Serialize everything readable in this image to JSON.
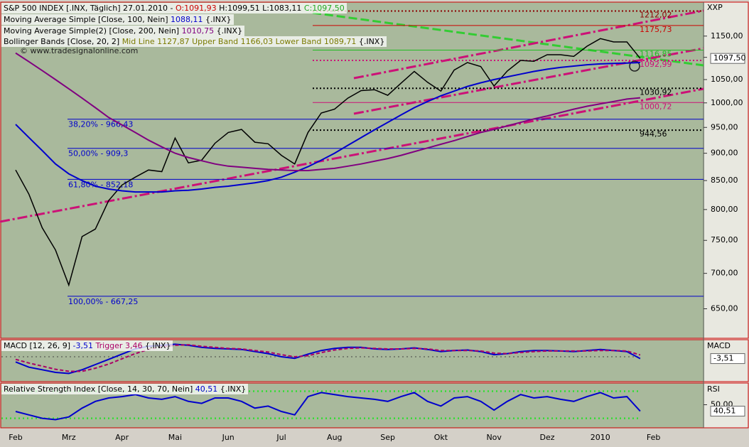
{
  "chart_data": [
    {
      "type": "line",
      "log_scale": true,
      "title": "S&P 500 INDEX [.INX, Täglich] 27.01.2010 -",
      "ohlc": [
        "O:1091,93",
        "H:1099,51",
        "L:1083,11",
        "C:1097,50"
      ],
      "scale_label": "XXP",
      "watermark": "© www.tradesignalonline.com",
      "last_price": "1097,50",
      "legend_lines": [
        {
          "text": "Moving Average Simple [Close, 100, Nein]",
          "value": "1088,11",
          "color": "#0000cc",
          "suffix": "{.INX}"
        },
        {
          "text": "Moving Average Simple(2) [Close, 200, Nein]",
          "value": "1010,75",
          "color": "#800080",
          "suffix": "{.INX}"
        },
        {
          "text": "Bollinger Bands [Close, 20, 2]",
          "value": "Mid Line 1127,87 Upper Band 1166,03 Lower Band 1089,71",
          "color": "#7a7a00",
          "suffix": "{.INX}"
        }
      ],
      "categories": [
        "Feb",
        null,
        null,
        null,
        "Mrz",
        null,
        null,
        null,
        "Apr",
        null,
        null,
        null,
        "Mai",
        null,
        null,
        null,
        "Jun",
        null,
        null,
        null,
        "Jul",
        null,
        null,
        null,
        "Aug",
        null,
        null,
        null,
        "Sep",
        null,
        null,
        null,
        "Okt",
        null,
        null,
        null,
        "Nov",
        null,
        null,
        null,
        "Dez",
        null,
        null,
        null,
        "2010",
        null,
        null,
        null,
        "Feb"
      ],
      "series": [
        {
          "name": "Close",
          "color": "#000000",
          "values": [
            869,
            826,
            770,
            735,
            683,
            756,
            768,
            815,
            842,
            856,
            869,
            866,
            929,
            882,
            887,
            919,
            940,
            946,
            921,
            918,
            896,
            880,
            940,
            979,
            987,
            1010,
            1026,
            1028,
            1016,
            1042,
            1068,
            1044,
            1025,
            1071,
            1088,
            1079,
            1036,
            1069,
            1093,
            1091,
            1106,
            1106,
            1102,
            1126,
            1144,
            1136,
            1136,
            1097.5,
            null
          ]
        },
        {
          "name": "MA 100",
          "color": "#0000cc",
          "values": [
            956,
            930,
            905,
            880,
            862,
            850,
            840,
            835,
            832,
            830,
            830,
            830,
            832,
            833,
            835,
            838,
            840,
            843,
            846,
            850,
            856,
            865,
            875,
            887,
            900,
            915,
            930,
            945,
            960,
            975,
            990,
            1003,
            1015,
            1025,
            1035,
            1043,
            1050,
            1056,
            1062,
            1068,
            1073,
            1077,
            1080,
            1083,
            1085,
            1086,
            1087,
            1088.11,
            null
          ]
        },
        {
          "name": "MA 200",
          "color": "#800080",
          "values": [
            1110,
            1090,
            1070,
            1050,
            1030,
            1010,
            990,
            970,
            955,
            940,
            925,
            912,
            900,
            892,
            886,
            880,
            876,
            874,
            872,
            870,
            869,
            868,
            868,
            870,
            872,
            876,
            880,
            885,
            890,
            896,
            903,
            910,
            917,
            924,
            932,
            940,
            946,
            953,
            960,
            967,
            973,
            980,
            987,
            993,
            998,
            1003,
            1008,
            1010.75,
            null
          ]
        }
      ],
      "ylim": [
        612,
        1231
      ],
      "yticks": [
        {
          "value": 650,
          "label": "650,00"
        },
        {
          "value": 700,
          "label": "700,00"
        },
        {
          "value": 750,
          "label": "750,00"
        },
        {
          "value": 800,
          "label": "800,00"
        },
        {
          "value": 850,
          "label": "850,00"
        },
        {
          "value": 900,
          "label": "900,00"
        },
        {
          "value": 950,
          "label": "950,00"
        },
        {
          "value": 1000,
          "label": "1000,00"
        },
        {
          "value": 1050,
          "label": "1050,00"
        },
        {
          "value": 1100,
          "label": "1100,00"
        },
        {
          "value": 1150,
          "label": "1150,00"
        }
      ],
      "levels": [
        {
          "value": 1212.02,
          "label": "1212,02",
          "color": "#8b0000",
          "dash": "2,3"
        },
        {
          "value": 1175.73,
          "label": "1175,73",
          "color": "#cc0000",
          "dash": "none"
        },
        {
          "value": 1116.85,
          "label": "1116,85",
          "color": "#22bb22",
          "dash": "none"
        },
        {
          "value": 1092.99,
          "label": "1092,99",
          "color": "#cc1177",
          "dash": "2,3"
        },
        {
          "value": 1030.92,
          "label": "1030,92",
          "color": "#000000",
          "dash": "2,3"
        },
        {
          "value": 1000.72,
          "label": "1000,72",
          "color": "#cc1177",
          "dash": "none"
        },
        {
          "value": 944.56,
          "label": "944,56",
          "color": "#000000",
          "dash": "2,3"
        }
      ],
      "fib_levels": [
        {
          "value": 966.43,
          "label": "38,20% - 966,43"
        },
        {
          "value": 909.3,
          "label": "50,00% - 909,3"
        },
        {
          "value": 852.18,
          "label": "61,80% - 852,18"
        },
        {
          "value": 667.25,
          "label": "100,00% - 667,25"
        }
      ],
      "fib_color": "#0000cc"
    },
    {
      "type": "line",
      "title": "MACD [12, 26, 9]",
      "title_value": "-3,51",
      "trigger_text": "Trigger 3,46",
      "suffix": "{.INX}",
      "scale_label": "MACD",
      "last_label": "-3,51",
      "series": [
        {
          "name": "MACD",
          "color": "#0000cc",
          "values": [
            -10,
            -20,
            -25,
            -30,
            -32,
            -25,
            -15,
            -5,
            5,
            15,
            20,
            22,
            24,
            22,
            18,
            16,
            15,
            14,
            10,
            6,
            0,
            -3,
            5,
            12,
            16,
            18,
            18,
            15,
            14,
            15,
            17,
            14,
            10,
            12,
            13,
            10,
            4,
            6,
            10,
            12,
            12,
            11,
            10,
            12,
            14,
            12,
            10,
            -3.51,
            null
          ]
        },
        {
          "name": "Trigger",
          "color": "#aa0066",
          "dash": "5,3",
          "values": [
            -5,
            -12,
            -18,
            -24,
            -28,
            -28,
            -22,
            -14,
            -4,
            6,
            14,
            19,
            22,
            23,
            20,
            18,
            16,
            15,
            12,
            9,
            4,
            0,
            2,
            8,
            13,
            16,
            17,
            16,
            15,
            15,
            16,
            15,
            12,
            12,
            12,
            11,
            7,
            6,
            8,
            10,
            11,
            11,
            11,
            11,
            12,
            12,
            11,
            3.46,
            null
          ]
        }
      ],
      "ylim": [
        -45,
        30
      ],
      "levels": [
        0
      ]
    },
    {
      "type": "line",
      "title": "Relative Strength Index [Close, 14, 30, 70, Nein]",
      "title_value": "40,51",
      "suffix": "{.INX}",
      "scale_label": "RSI",
      "last_label": "40,51",
      "series": [
        {
          "name": "RSI",
          "color": "#0000cc",
          "values": [
            40,
            35,
            30,
            28,
            32,
            45,
            55,
            60,
            62,
            65,
            60,
            58,
            62,
            55,
            52,
            60,
            60,
            55,
            45,
            48,
            40,
            35,
            62,
            68,
            65,
            62,
            60,
            58,
            55,
            62,
            68,
            55,
            48,
            60,
            62,
            55,
            42,
            55,
            65,
            60,
            62,
            58,
            55,
            62,
            68,
            60,
            62,
            40.51,
            null
          ]
        }
      ],
      "ylim": [
        18,
        81
      ],
      "yticks": [
        {
          "value": 50,
          "label": "50,00"
        }
      ],
      "levels": [
        30,
        70
      ]
    }
  ]
}
